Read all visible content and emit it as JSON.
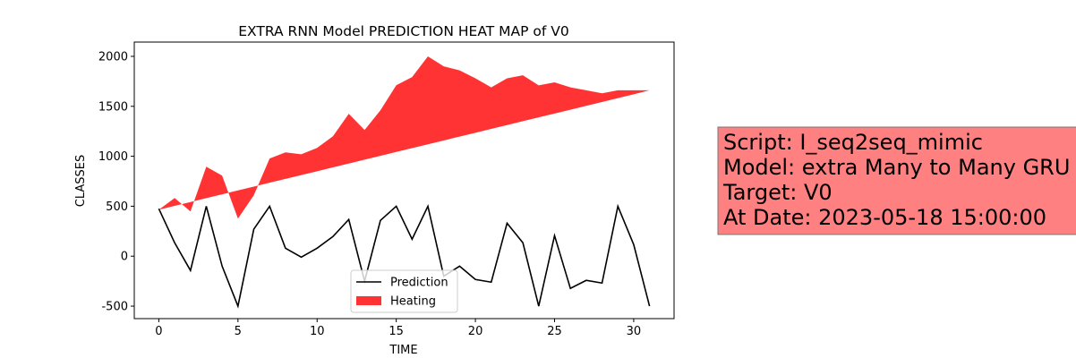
{
  "chart_data": {
    "type": "line_area",
    "title": "EXTRA RNN Model PREDICTION HEAT MAP of V0",
    "x_label": "TIME",
    "y_label": "CLASSES",
    "x": [
      0,
      1,
      2,
      3,
      4,
      5,
      6,
      7,
      8,
      9,
      10,
      11,
      12,
      13,
      14,
      15,
      16,
      17,
      18,
      19,
      20,
      21,
      22,
      23,
      24,
      25,
      26,
      27,
      28,
      29,
      30,
      31
    ],
    "series": [
      {
        "name": "Prediction",
        "kind": "line",
        "color": "#000000",
        "values": [
          475,
          134,
          -143,
          500,
          -100,
          -500,
          270,
          500,
          80,
          -10,
          80,
          197,
          367,
          -250,
          358,
          500,
          170,
          500,
          -200,
          -100,
          -233,
          -260,
          330,
          134,
          -500,
          206,
          -322,
          -242,
          -269,
          500,
          116,
          -500
        ]
      },
      {
        "name": "Heating",
        "kind": "area",
        "color": "#ff3333",
        "values": [
          465,
          582,
          448,
          896,
          806,
          376,
          609,
          977,
          1039,
          1020,
          1084,
          1200,
          1425,
          1263,
          1460,
          1711,
          1792,
          2000,
          1900,
          1860,
          1780,
          1690,
          1780,
          1810,
          1710,
          1740,
          1690,
          1660,
          1630,
          1660,
          1660,
          1660
        ],
        "base": [
          465,
          504,
          542,
          581,
          619,
          658,
          696,
          735,
          773,
          812,
          850,
          889,
          927,
          966,
          1004,
          1043,
          1081,
          1120,
          1158,
          1197,
          1235,
          1274,
          1312,
          1351,
          1389,
          1428,
          1466,
          1505,
          1543,
          1582,
          1620,
          1660
        ]
      }
    ],
    "xlim": [
      -1.55,
      32.55
    ],
    "ylim": [
      -625,
      2143
    ],
    "xticks": [
      0,
      5,
      10,
      15,
      20,
      25,
      30
    ],
    "yticks": [
      -500,
      0,
      500,
      1000,
      1500,
      2000
    ],
    "legend": "lower center",
    "info_box": {
      "color": "#ff8080",
      "lines": [
        "Script: I_seq2seq_mimic",
        "Model: extra Many to Many GRU",
        "Target: V0",
        "At Date: 2023-05-18 15:00:00"
      ]
    }
  }
}
